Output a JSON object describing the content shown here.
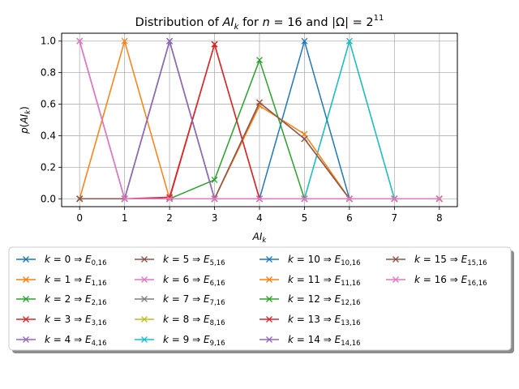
{
  "chart_data": {
    "type": "line",
    "title": "Distribution of AI_k for n = 16 and |Ω| = 2^11",
    "title_parts": {
      "prefix": "Distribution of ",
      "ai": "AI",
      "k": "k",
      "mid": " for ",
      "n": "n",
      "eq": " = 16 and |Ω| = 2",
      "exp": "11"
    },
    "xlabel": "AI_k",
    "xlabel_parts": {
      "ai": "AI",
      "k": "k"
    },
    "ylabel": "p(AI_k)",
    "ylabel_parts": {
      "p": "p",
      "open": "(",
      "ai": "AI",
      "k": "k",
      "close": ")"
    },
    "xlim": [
      -0.4,
      8.4
    ],
    "ylim": [
      -0.05,
      1.05
    ],
    "x_ticks": [
      "0",
      "1",
      "2",
      "3",
      "4",
      "5",
      "6",
      "7",
      "8"
    ],
    "y_ticks": [
      "0.0",
      "0.2",
      "0.4",
      "0.6",
      "0.8",
      "1.0"
    ],
    "grid": true,
    "marker": "x",
    "legend_position": "below plot, shadowed, 4 columns",
    "x": [
      0,
      1,
      2,
      3,
      4,
      5,
      6,
      7,
      8
    ],
    "series": [
      {
        "name": "k = 0 ⇒ E_{0,16}",
        "k": "0",
        "label_sub": "0,16",
        "color": "#1f77b4",
        "values": [
          1,
          0,
          0,
          0,
          0,
          0,
          0,
          0,
          0
        ]
      },
      {
        "name": "k = 1 ⇒ E_{1,16}",
        "k": "1",
        "label_sub": "1,16",
        "color": "#ff7f0e",
        "values": [
          0,
          1,
          0,
          0,
          0,
          0,
          0,
          0,
          0
        ]
      },
      {
        "name": "k = 2 ⇒ E_{2,16}",
        "k": "2",
        "label_sub": "2,16",
        "color": "#2ca02c",
        "values": [
          0,
          0,
          1,
          0,
          0,
          0,
          0,
          0,
          0
        ]
      },
      {
        "name": "k = 3 ⇒ E_{3,16}",
        "k": "3",
        "label_sub": "3,16",
        "color": "#d62728",
        "values": [
          0,
          0,
          0,
          0.98,
          0,
          0,
          0,
          0,
          0
        ]
      },
      {
        "name": "k = 4 ⇒ E_{4,16}",
        "k": "4",
        "label_sub": "4,16",
        "color": "#9467bd",
        "values": [
          0,
          0,
          1,
          0,
          0,
          0,
          0,
          0,
          0
        ]
      },
      {
        "name": "k = 5 ⇒ E_{5,16}",
        "k": "5",
        "label_sub": "5,16",
        "color": "#8c564b",
        "values": [
          0,
          0,
          0,
          0,
          0.61,
          0.38,
          0,
          0,
          0
        ]
      },
      {
        "name": "k = 6 ⇒ E_{6,16}",
        "k": "6",
        "label_sub": "6,16",
        "color": "#e377c2",
        "values": [
          1,
          0,
          0,
          0,
          0,
          0,
          0,
          0,
          0
        ]
      },
      {
        "name": "k = 7 ⇒ E_{7,16}",
        "k": "7",
        "label_sub": "7,16",
        "color": "#7f7f7f",
        "values": [
          0,
          0,
          1,
          0,
          0,
          0,
          0,
          0,
          0
        ]
      },
      {
        "name": "k = 8 ⇒ E_{8,16}",
        "k": "8",
        "label_sub": "8,16",
        "color": "#bcbd22",
        "values": [
          0,
          0,
          0,
          0,
          0,
          0,
          1,
          0,
          0
        ]
      },
      {
        "name": "k = 9 ⇒ E_{9,16}",
        "k": "9",
        "label_sub": "9,16",
        "color": "#17becf",
        "values": [
          0,
          0,
          0,
          0,
          0,
          0,
          1,
          0,
          0
        ]
      },
      {
        "name": "k = 10 ⇒ E_{10,16}",
        "k": "10",
        "label_sub": "10,16",
        "color": "#1f77b4",
        "values": [
          0,
          0,
          0,
          0,
          0,
          1,
          0,
          0,
          0
        ]
      },
      {
        "name": "k = 11 ⇒ E_{11,16}",
        "k": "11",
        "label_sub": "11,16",
        "color": "#ff7f0e",
        "values": [
          0,
          0,
          0,
          0,
          0.59,
          0.41,
          0,
          0,
          0
        ]
      },
      {
        "name": "k = 12 ⇒ E_{12,16}",
        "k": "12",
        "label_sub": "12,16",
        "color": "#2ca02c",
        "values": [
          0,
          0,
          0,
          0.12,
          0.88,
          0,
          0,
          0,
          0
        ]
      },
      {
        "name": "k = 13 ⇒ E_{13,16}",
        "k": "13",
        "label_sub": "13,16",
        "color": "#d62728",
        "values": [
          0,
          0,
          0.01,
          0.98,
          0,
          0,
          0,
          0,
          0
        ]
      },
      {
        "name": "k = 14 ⇒ E_{14,16}",
        "k": "14",
        "label_sub": "14,16",
        "color": "#9467bd",
        "values": [
          0,
          0,
          1,
          0,
          0,
          0,
          0,
          0,
          0
        ]
      },
      {
        "name": "k = 15 ⇒ E_{15,16}",
        "k": "15",
        "label_sub": "15,16",
        "color": "#8c564b",
        "values": [
          0,
          0,
          0,
          0,
          0.61,
          0.38,
          0,
          0,
          0
        ]
      },
      {
        "name": "k = 16 ⇒ E_{16,16}",
        "k": "16",
        "label_sub": "16,16",
        "color": "#e377c2",
        "values": [
          1,
          0,
          0,
          0,
          0,
          0,
          0,
          0,
          0
        ]
      }
    ]
  }
}
